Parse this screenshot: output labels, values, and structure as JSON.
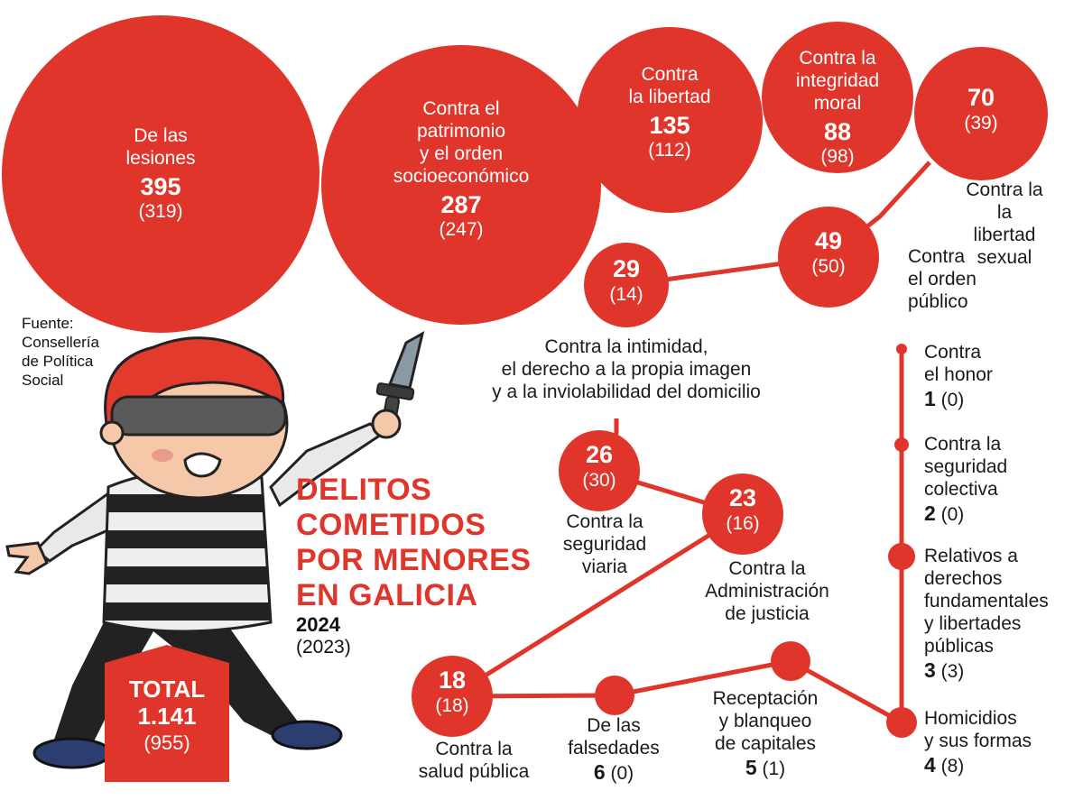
{
  "title": "DELITOS\nCOMETIDOS\nPOR MENORES\nEN GALICIA",
  "year_current": "2024",
  "year_previous": "(2023)",
  "source": "Fuente:\nConsellería\nde Política\nSocial",
  "total": {
    "label": "TOTAL",
    "value": "1.141",
    "previous": "(955)"
  },
  "colors": {
    "accent": "#e0352b",
    "text": "#1a1a1a",
    "white": "#ffffff"
  },
  "chart_data": {
    "type": "bubble",
    "title": "DELITOS COMETIDOS POR MENORES EN GALICIA",
    "series": [
      {
        "name": "2024"
      },
      {
        "name": "(2023)"
      }
    ],
    "categories": [
      {
        "label": "De las\nlesiones",
        "value": 395,
        "previous": 319
      },
      {
        "label": "Contra el\npatrimonio\ny el orden\nsocioeconómico",
        "value": 287,
        "previous": 247
      },
      {
        "label": "Contra\nla libertad",
        "value": 135,
        "previous": 112
      },
      {
        "label": "Contra la\nintegridad\nmoral",
        "value": 88,
        "previous": 98
      },
      {
        "label": "Contra la la\nlibertad sexual",
        "value": 70,
        "previous": 39
      },
      {
        "label": "Contra\nel orden\npúblico",
        "value": 49,
        "previous": 50
      },
      {
        "label": "Contra la intimidad,\nel derecho a la propia imagen\ny a la inviolabilidad del domicilio",
        "value": 29,
        "previous": 14
      },
      {
        "label": "Contra la\nseguridad\nviaria",
        "value": 26,
        "previous": 30
      },
      {
        "label": "Contra la\nAdministración\nde justicia",
        "value": 23,
        "previous": 16
      },
      {
        "label": "Contra la\nsalud pública",
        "value": 18,
        "previous": 18
      },
      {
        "label": "De las\nfalsedades",
        "value": 6,
        "previous": 0
      },
      {
        "label": "Receptación\ny blanqueo\nde capitales",
        "value": 5,
        "previous": 1
      },
      {
        "label": "Homicidios\ny sus formas",
        "value": 4,
        "previous": 8
      },
      {
        "label": "Relativos a\nderechos\nfundamentales\ny libertades\npúblicas",
        "value": 3,
        "previous": 3
      },
      {
        "label": "Contra la\nseguridad\ncolectiva",
        "value": 2,
        "previous": 0
      },
      {
        "label": "Contra\nel honor",
        "value": 1,
        "previous": 0
      }
    ],
    "total": {
      "value": 1141,
      "previous": 955
    }
  }
}
